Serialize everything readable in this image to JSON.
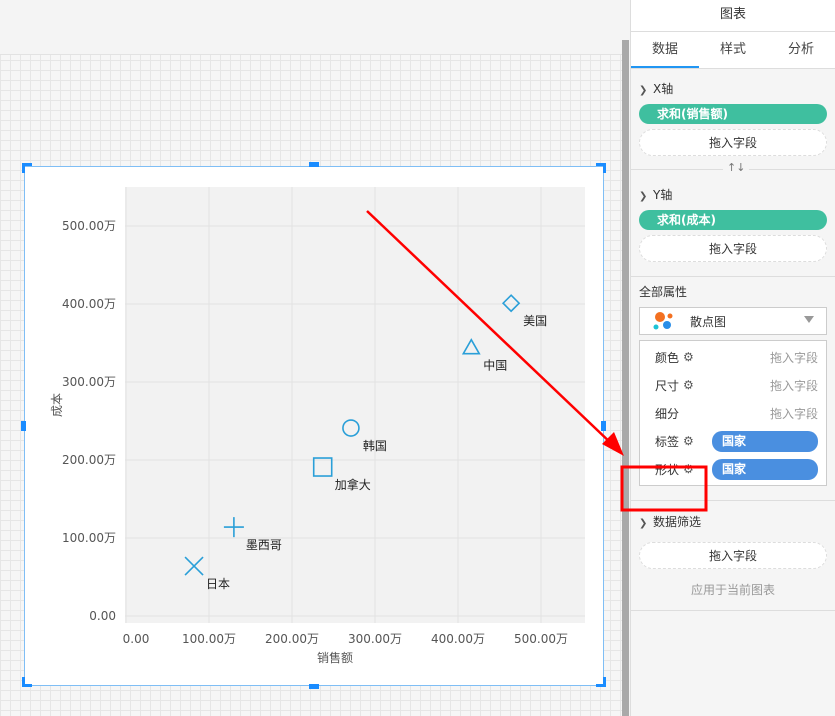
{
  "panel": {
    "title": "图表",
    "tabs": [
      {
        "label": "数据",
        "active": true
      },
      {
        "label": "样式"
      },
      {
        "label": "分析"
      }
    ],
    "x_axis": {
      "label": "X轴",
      "field": "求和(销售额)",
      "drop": "拖入字段"
    },
    "swap_icon": "↑↓",
    "y_axis": {
      "label": "Y轴",
      "field": "求和(成本)",
      "drop": "拖入字段"
    },
    "all_props": {
      "label": "全部属性",
      "chart_type": "散点图",
      "rows": [
        {
          "label": "颜色",
          "hint": "拖入字段",
          "gear": true
        },
        {
          "label": "尺寸",
          "hint": "拖入字段",
          "gear": true
        },
        {
          "label": "细分",
          "hint": "拖入字段",
          "gear": false
        },
        {
          "label": "标签",
          "field": "国家",
          "gear": true
        },
        {
          "label": "形状",
          "field": "国家",
          "gear": true
        }
      ]
    },
    "filter": {
      "label": "数据筛选",
      "drop": "拖入字段",
      "apply": "应用于当前图表"
    },
    "colors": {
      "accent": "#2196f3",
      "green_pill": "#3fbf9f",
      "blue_pill": "#4a8fe0",
      "annotation": "#ff0000"
    }
  },
  "chart_data": {
    "type": "scatter",
    "xlabel": "销售额",
    "ylabel": "成本",
    "xlim": [
      0,
      550
    ],
    "ylim": [
      0,
      550
    ],
    "x_ticks": [
      "0.00",
      "100.00万",
      "200.00万",
      "300.00万",
      "400.00万",
      "500.00万"
    ],
    "y_ticks": [
      "0.00",
      "100.00万",
      "200.00万",
      "300.00万",
      "400.00万",
      "500.00万"
    ],
    "grid": true,
    "marker_color": "#2a9fd8",
    "points": [
      {
        "label": "日本",
        "x": 82,
        "y": 64,
        "shape": "x"
      },
      {
        "label": "墨西哥",
        "x": 130,
        "y": 114,
        "shape": "plus"
      },
      {
        "label": "加拿大",
        "x": 237,
        "y": 191,
        "shape": "square"
      },
      {
        "label": "韩国",
        "x": 271,
        "y": 241,
        "shape": "circle"
      },
      {
        "label": "中国",
        "x": 416,
        "y": 344,
        "shape": "triangle"
      },
      {
        "label": "美国",
        "x": 464,
        "y": 401,
        "shape": "diamond"
      }
    ]
  }
}
